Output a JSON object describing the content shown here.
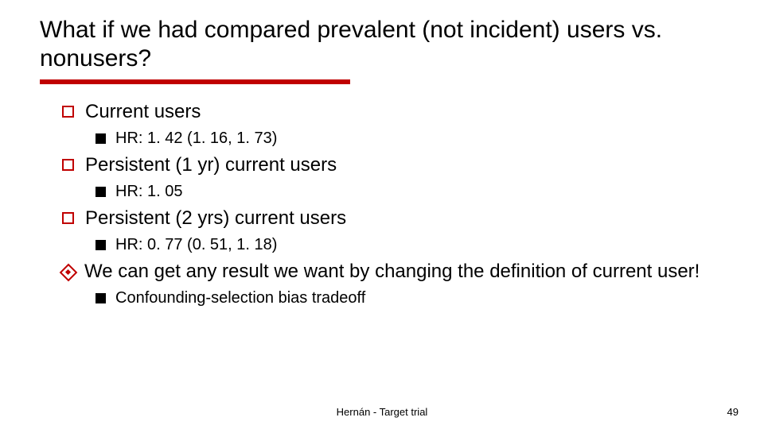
{
  "title": "What if we had compared prevalent (not incident) users vs. nonusers?",
  "items": [
    {
      "level": 1,
      "bullet": "box-open",
      "text": "Current users"
    },
    {
      "level": 2,
      "bullet": "box-filled",
      "text": "HR: 1. 42 (1. 16, 1. 73)"
    },
    {
      "level": 1,
      "bullet": "box-open",
      "text": "Persistent (1 yr) current users"
    },
    {
      "level": 2,
      "bullet": "box-filled",
      "text": "HR: 1. 05"
    },
    {
      "level": 1,
      "bullet": "box-open",
      "text": "Persistent (2 yrs) current users"
    },
    {
      "level": 2,
      "bullet": "box-filled",
      "text": "HR: 0. 77 (0. 51, 1. 18)"
    },
    {
      "level": 1,
      "bullet": "diamond",
      "text": "We can get any result we want by changing the definition of current user!"
    },
    {
      "level": 2,
      "bullet": "box-filled",
      "text": "Confounding-selection bias tradeoff"
    }
  ],
  "footer": "Hernán - Target trial",
  "page": "49",
  "style": {
    "background_color": "#ffffff",
    "title_fontsize": 30,
    "l1_fontsize": 24,
    "l2_fontsize": 20,
    "footer_fontsize": 13,
    "rule_color": "#c00000",
    "rule_height": 6,
    "rule_width": 390,
    "bullet_open_border": "#c00000",
    "bullet_filled_color": "#000000",
    "diamond_color": "#c00000",
    "text_color": "#000000",
    "font_family": "Verdana"
  }
}
